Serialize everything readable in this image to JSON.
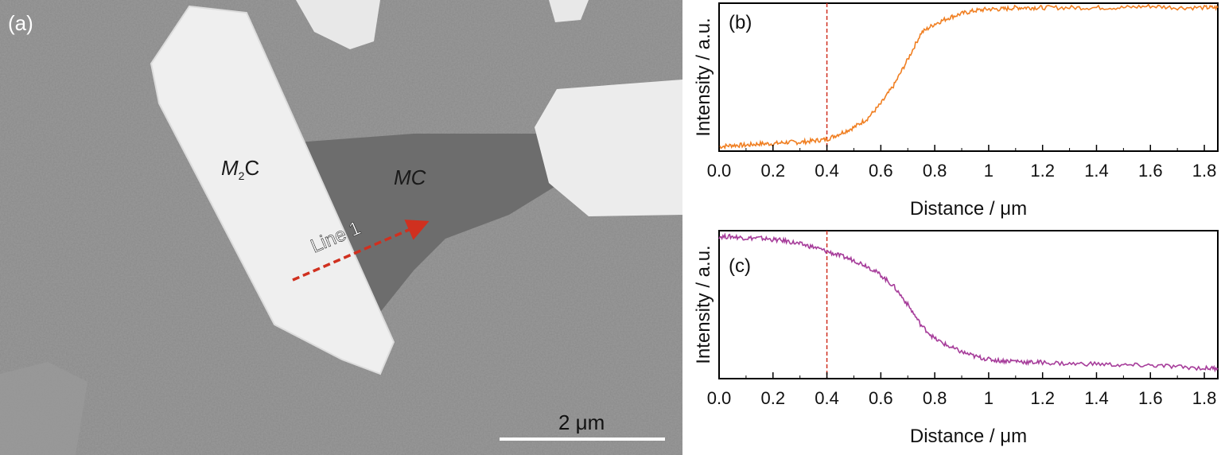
{
  "sem_panel": {
    "panel_label": "(a)",
    "phase_m2c": {
      "italic": "M",
      "sub": "2",
      "rest": "C"
    },
    "phase_mc": "MC",
    "line_label": "Line 1",
    "scale_bar_label": "2 μm",
    "colors": {
      "background": "#8f8f8f",
      "carbide": "#eeeeee",
      "mc_phase": "#6e6e6e",
      "arrow": "#d0301f"
    }
  },
  "chart_data": [
    {
      "type": "line",
      "panel_label": "(b)",
      "xlabel": "Distance / μm",
      "ylabel": "Intensity / a.u.",
      "xlim": [
        0,
        1.85
      ],
      "ylim": [
        0,
        1
      ],
      "xticks": [
        "0.0",
        "0.2",
        "0.4",
        "0.6",
        "0.8",
        "1",
        "1.2",
        "1.4",
        "1.6",
        "1.8"
      ],
      "xtick_values": [
        0,
        0.2,
        0.4,
        0.6,
        0.8,
        1.0,
        1.2,
        1.4,
        1.6,
        1.8
      ],
      "reference_line_x": 0.4,
      "color": "#f07f22",
      "series": [
        {
          "x": [
            0,
            0.05,
            0.1,
            0.15,
            0.2,
            0.25,
            0.3,
            0.35,
            0.4,
            0.45,
            0.5,
            0.55,
            0.6,
            0.65,
            0.7,
            0.75,
            0.8,
            0.85,
            0.9,
            0.95,
            1.0,
            1.05,
            1.1,
            1.15,
            1.2,
            1.3,
            1.4,
            1.5,
            1.6,
            1.7,
            1.8,
            1.85
          ],
          "y": [
            0.03,
            0.04,
            0.04,
            0.05,
            0.05,
            0.06,
            0.06,
            0.07,
            0.08,
            0.12,
            0.16,
            0.22,
            0.32,
            0.45,
            0.62,
            0.8,
            0.86,
            0.9,
            0.93,
            0.95,
            0.96,
            0.96,
            0.97,
            0.97,
            0.97,
            0.97,
            0.97,
            0.97,
            0.98,
            0.97,
            0.97,
            0.97
          ]
        }
      ]
    },
    {
      "type": "line",
      "panel_label": "(c)",
      "xlabel": "Distance / μm",
      "ylabel": "Intensity / a.u.",
      "xlim": [
        0,
        1.85
      ],
      "ylim": [
        0,
        1
      ],
      "xticks": [
        "0.0",
        "0.2",
        "0.4",
        "0.6",
        "0.8",
        "1",
        "1.2",
        "1.4",
        "1.6",
        "1.8"
      ],
      "xtick_values": [
        0,
        0.2,
        0.4,
        0.6,
        0.8,
        1.0,
        1.2,
        1.4,
        1.6,
        1.8
      ],
      "reference_line_x": 0.4,
      "color": "#a63c9a",
      "series": [
        {
          "x": [
            0,
            0.05,
            0.1,
            0.15,
            0.2,
            0.25,
            0.3,
            0.35,
            0.4,
            0.45,
            0.5,
            0.55,
            0.6,
            0.65,
            0.7,
            0.75,
            0.8,
            0.85,
            0.9,
            0.95,
            1.0,
            1.05,
            1.1,
            1.15,
            1.2,
            1.3,
            1.4,
            1.5,
            1.6,
            1.7,
            1.8,
            1.85
          ],
          "y": [
            0.96,
            0.96,
            0.95,
            0.95,
            0.94,
            0.93,
            0.91,
            0.89,
            0.86,
            0.83,
            0.8,
            0.76,
            0.7,
            0.62,
            0.5,
            0.36,
            0.27,
            0.22,
            0.18,
            0.15,
            0.13,
            0.12,
            0.12,
            0.11,
            0.11,
            0.1,
            0.1,
            0.09,
            0.09,
            0.08,
            0.07,
            0.07
          ]
        }
      ]
    }
  ]
}
